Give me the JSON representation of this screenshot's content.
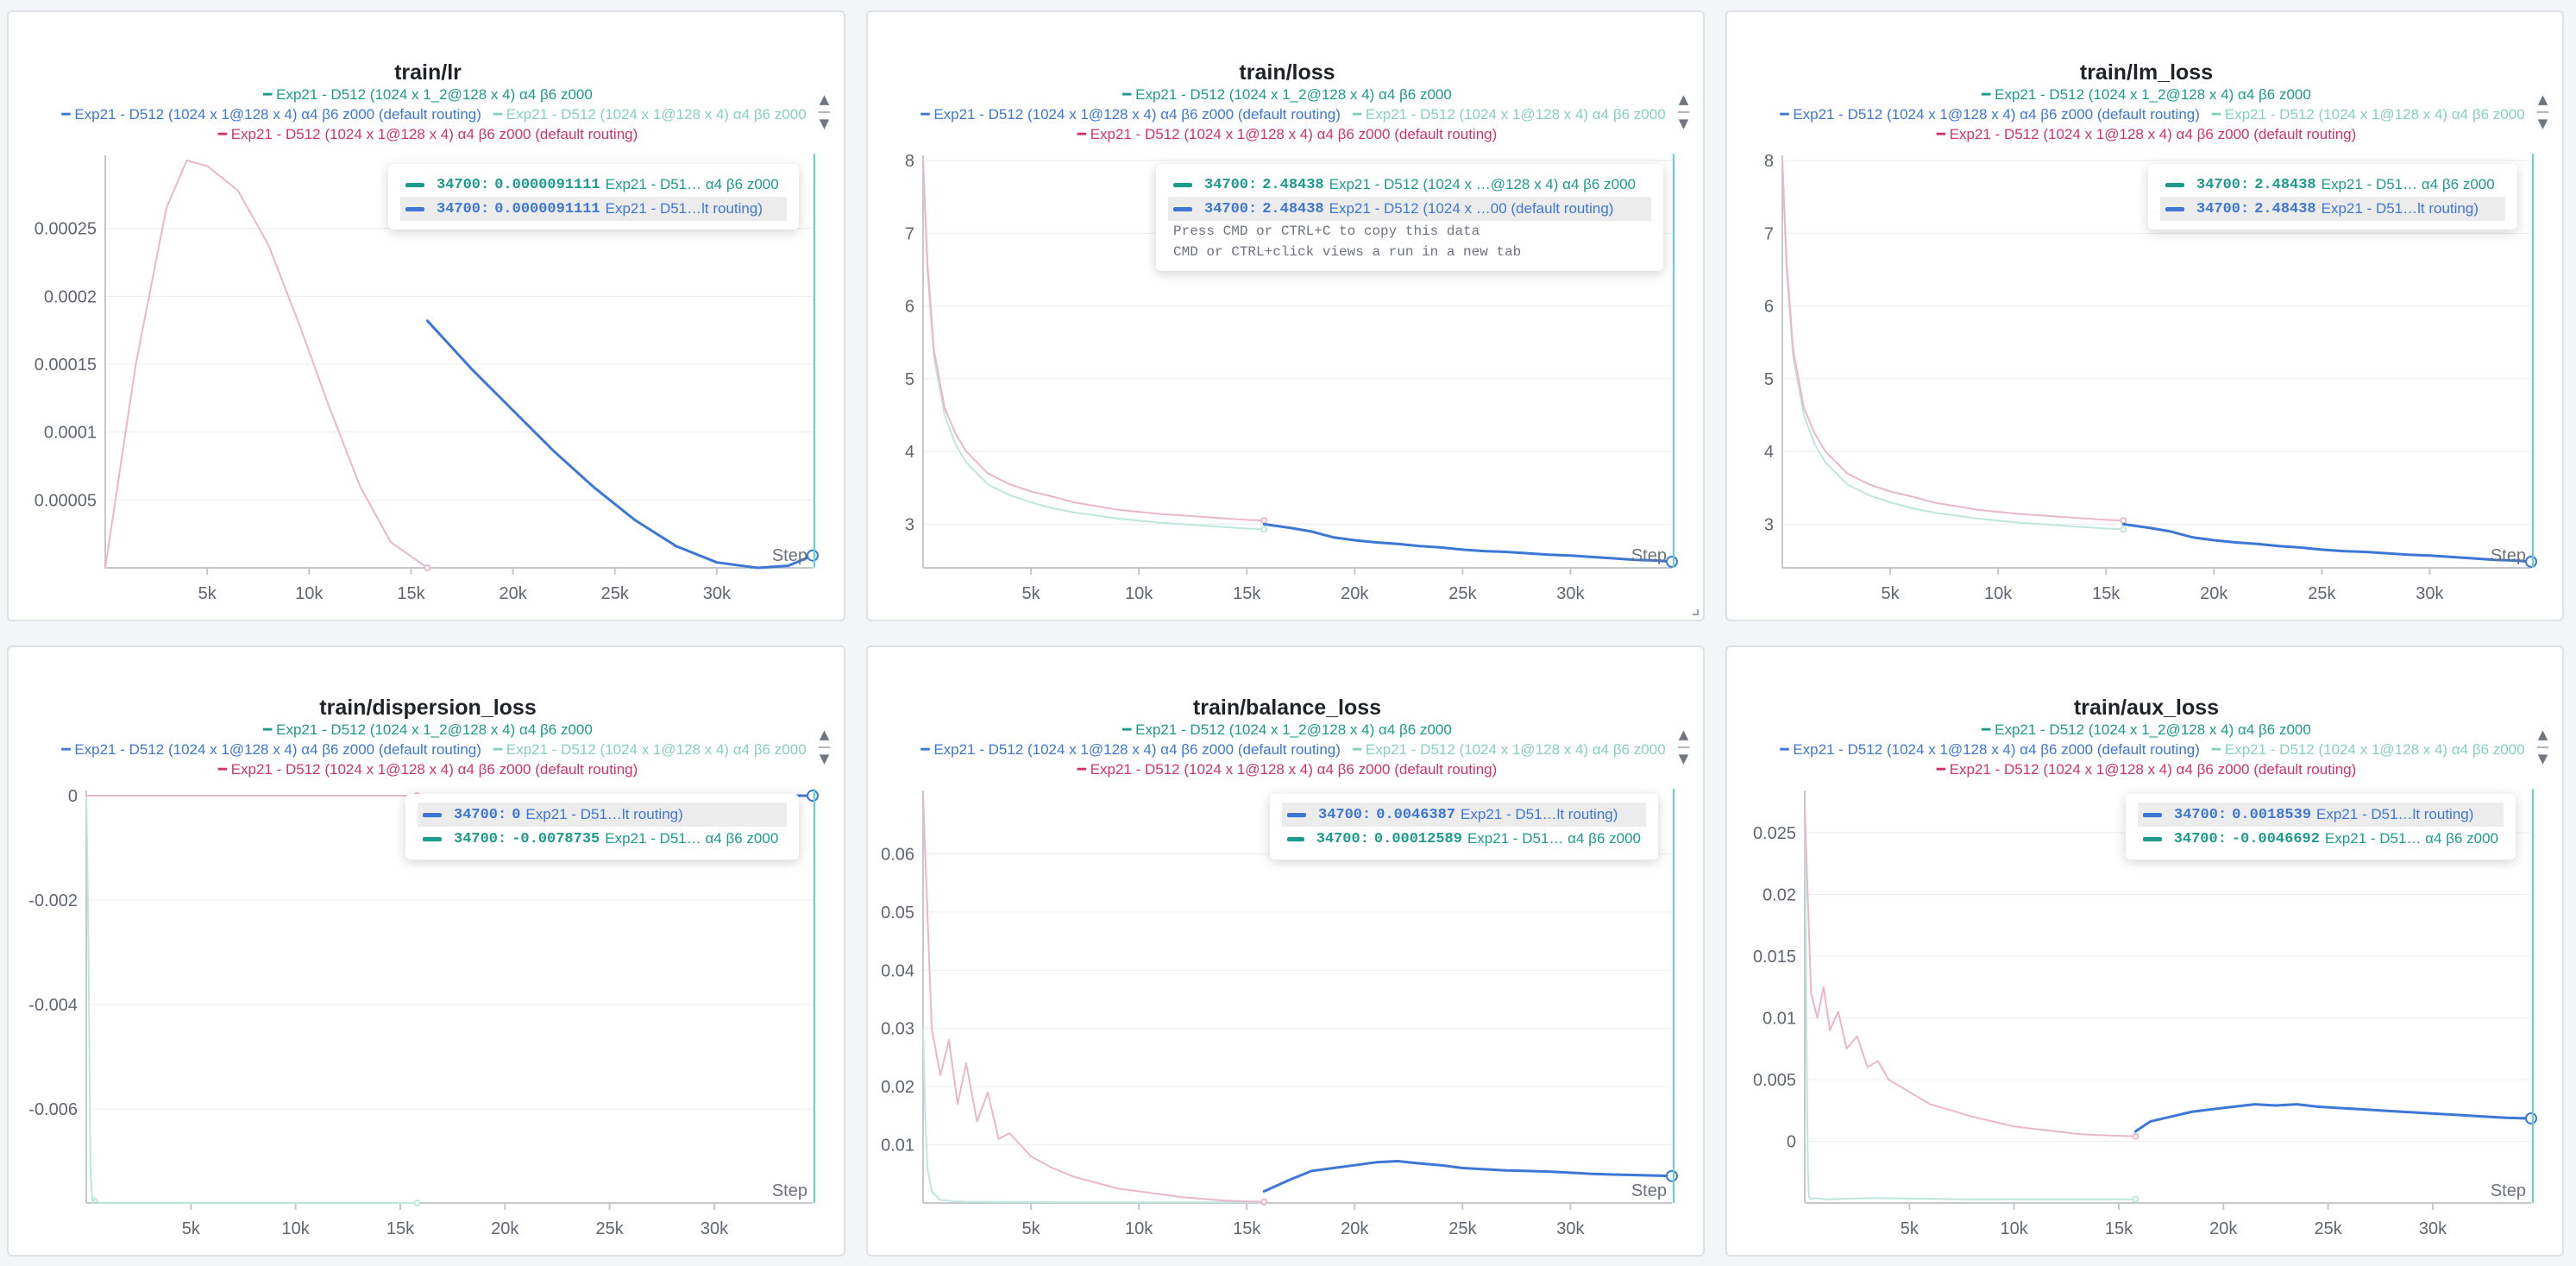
{
  "colors": {
    "teal": "#1c9a8c",
    "blue": "#3d77d6",
    "mint": "#86cfbf",
    "magenta": "#d0336b",
    "pink_line": "#eab6cb",
    "mint_line": "#bfe6dc",
    "cursor": "#5fd6cc"
  },
  "legend": [
    {
      "color": "teal",
      "text": "Exp21 - D512 (1024 x 1_2@128 x 4) α4 β6 z000"
    },
    {
      "color": "blue",
      "text": "Exp21 - D512 (1024 x 1@128 x 4) α4 β6 z000 (default routing)"
    },
    {
      "color": "mint",
      "text": "Exp21 - D512 (1024 x 1@128 x 4) α4 β6 z000"
    },
    {
      "color": "magenta",
      "text": "Exp21 - D512 (1024 x 1@128 x 4) α4 β6 z000 (default routing)"
    }
  ],
  "step_label": "Step",
  "icons": {
    "scroll_up": "caret-up-icon",
    "scroll_down": "caret-down-icon",
    "resize": "resize-corner-icon"
  },
  "chart_data": [
    {
      "title": "train/lr",
      "type": "line",
      "xlim": [
        0,
        34700
      ],
      "ylim": [
        0,
        0.0003
      ],
      "xticks": [
        5000,
        10000,
        15000,
        20000,
        25000,
        30000
      ],
      "xtick_labels": [
        "5k",
        "10k",
        "15k",
        "20k",
        "25k",
        "30k"
      ],
      "yticks": [
        5e-05,
        0.0001,
        0.00015,
        0.0002,
        0.00025
      ],
      "ytick_labels": [
        "0.00005",
        "0.0001",
        "0.00015",
        "0.0002",
        "0.00025"
      ],
      "series": [
        {
          "color": "pink_line",
          "width": 2,
          "x": [
            0,
            1500,
            3000,
            4000,
            5000,
            6500,
            8000,
            9500,
            11000,
            12500,
            14000,
            15800
          ],
          "y": [
            0,
            0.00015,
            0.000265,
            0.0003,
            0.000296,
            0.000278,
            0.000238,
            0.00018,
            0.000118,
            6e-05,
            1.9e-05,
            0
          ]
        },
        {
          "color": "blue",
          "width": 3,
          "x": [
            15800,
            18000,
            20000,
            22000,
            24000,
            26000,
            28000,
            30000,
            32000,
            33500,
            34700
          ],
          "y": [
            0.000182,
            0.000146,
            0.000116,
            8.6e-05,
            5.9e-05,
            3.5e-05,
            1.6e-05,
            4e-06,
            0,
            1.5e-06,
            9.1111e-06
          ]
        }
      ],
      "tooltip": {
        "rows": [
          {
            "color": "teal",
            "step": "34700:",
            "value": "0.0000091111",
            "name": "Exp21 - D51… α4 β6 z000",
            "highlight": false
          },
          {
            "color": "blue",
            "step": "34700:",
            "value": "0.0000091111",
            "name": "Exp21 - D51…lt routing)",
            "highlight": true
          }
        ],
        "hints": []
      }
    },
    {
      "title": "train/loss",
      "type": "line",
      "xlim": [
        0,
        34700
      ],
      "ylim": [
        2.4,
        8
      ],
      "xticks": [
        5000,
        10000,
        15000,
        20000,
        25000,
        30000
      ],
      "xtick_labels": [
        "5k",
        "10k",
        "15k",
        "20k",
        "25k",
        "30k"
      ],
      "yticks": [
        3,
        4,
        5,
        6,
        7,
        8
      ],
      "ytick_labels": [
        "3",
        "4",
        "5",
        "6",
        "7",
        "8"
      ],
      "series": [
        {
          "color": "mint_line",
          "width": 2,
          "x": [
            0,
            200,
            500,
            1000,
            1500,
            2000,
            3000,
            4000,
            5000,
            6000,
            7000,
            8000,
            9000,
            10000,
            11000,
            12000,
            13000,
            14000,
            15000,
            15800
          ],
          "y": [
            8,
            6.5,
            5.3,
            4.5,
            4.1,
            3.85,
            3.55,
            3.4,
            3.3,
            3.22,
            3.16,
            3.12,
            3.08,
            3.05,
            3.02,
            3.0,
            2.98,
            2.96,
            2.94,
            2.93
          ]
        },
        {
          "color": "pink_line",
          "width": 2,
          "x": [
            0,
            200,
            500,
            1000,
            1500,
            2000,
            3000,
            4000,
            5000,
            6000,
            7000,
            8000,
            9000,
            10000,
            11000,
            12000,
            13000,
            14000,
            15000,
            15800
          ],
          "y": [
            8,
            6.6,
            5.4,
            4.6,
            4.25,
            4.0,
            3.7,
            3.55,
            3.45,
            3.38,
            3.3,
            3.25,
            3.2,
            3.17,
            3.14,
            3.12,
            3.1,
            3.08,
            3.06,
            3.05
          ]
        },
        {
          "color": "blue",
          "width": 3,
          "x": [
            15800,
            17000,
            18000,
            19000,
            20000,
            21000,
            22000,
            23000,
            24000,
            25000,
            26000,
            27000,
            28000,
            29000,
            30000,
            31000,
            32000,
            33000,
            34000,
            34700
          ],
          "y": [
            3.0,
            2.95,
            2.9,
            2.82,
            2.78,
            2.75,
            2.73,
            2.7,
            2.68,
            2.65,
            2.63,
            2.62,
            2.6,
            2.58,
            2.57,
            2.55,
            2.53,
            2.51,
            2.5,
            2.48438
          ]
        }
      ],
      "tooltip": {
        "rows": [
          {
            "color": "teal",
            "step": "34700:",
            "value": "2.48438",
            "name": "Exp21 - D512 (1024 x …@128 x 4) α4 β6 z000",
            "highlight": false
          },
          {
            "color": "blue",
            "step": "34700:",
            "value": "2.48438",
            "name": "Exp21 - D512 (1024 x …00 (default routing)",
            "highlight": true
          }
        ],
        "hints": [
          "Press CMD or CTRL+C to copy this data",
          "CMD or CTRL+click views a run in a new tab"
        ]
      }
    },
    {
      "title": "train/lm_loss",
      "type": "line",
      "xlim": [
        0,
        34700
      ],
      "ylim": [
        2.4,
        8
      ],
      "xticks": [
        5000,
        10000,
        15000,
        20000,
        25000,
        30000
      ],
      "xtick_labels": [
        "5k",
        "10k",
        "15k",
        "20k",
        "25k",
        "30k"
      ],
      "yticks": [
        3,
        4,
        5,
        6,
        7,
        8
      ],
      "ytick_labels": [
        "3",
        "4",
        "5",
        "6",
        "7",
        "8"
      ],
      "series": [
        {
          "color": "mint_line",
          "width": 2,
          "x": [
            0,
            200,
            500,
            1000,
            1500,
            2000,
            3000,
            4000,
            5000,
            6000,
            7000,
            8000,
            9000,
            10000,
            11000,
            12000,
            13000,
            14000,
            15000,
            15800
          ],
          "y": [
            8,
            6.5,
            5.3,
            4.5,
            4.1,
            3.85,
            3.55,
            3.4,
            3.3,
            3.22,
            3.16,
            3.12,
            3.08,
            3.05,
            3.02,
            3.0,
            2.98,
            2.96,
            2.94,
            2.93
          ]
        },
        {
          "color": "pink_line",
          "width": 2,
          "x": [
            0,
            200,
            500,
            1000,
            1500,
            2000,
            3000,
            4000,
            5000,
            6000,
            7000,
            8000,
            9000,
            10000,
            11000,
            12000,
            13000,
            14000,
            15000,
            15800
          ],
          "y": [
            8,
            6.6,
            5.4,
            4.6,
            4.25,
            4.0,
            3.7,
            3.55,
            3.45,
            3.38,
            3.3,
            3.25,
            3.2,
            3.17,
            3.14,
            3.12,
            3.1,
            3.08,
            3.06,
            3.05
          ]
        },
        {
          "color": "blue",
          "width": 3,
          "x": [
            15800,
            17000,
            18000,
            19000,
            20000,
            21000,
            22000,
            23000,
            24000,
            25000,
            26000,
            27000,
            28000,
            29000,
            30000,
            31000,
            32000,
            33000,
            34000,
            34700
          ],
          "y": [
            3.0,
            2.95,
            2.9,
            2.82,
            2.78,
            2.75,
            2.73,
            2.7,
            2.68,
            2.65,
            2.63,
            2.62,
            2.6,
            2.58,
            2.57,
            2.55,
            2.53,
            2.51,
            2.5,
            2.48438
          ]
        }
      ],
      "tooltip": {
        "rows": [
          {
            "color": "teal",
            "step": "34700:",
            "value": "2.48438",
            "name": "Exp21 - D51… α4 β6 z000",
            "highlight": false
          },
          {
            "color": "blue",
            "step": "34700:",
            "value": "2.48438",
            "name": "Exp21 - D51…lt routing)",
            "highlight": true
          }
        ],
        "hints": []
      }
    },
    {
      "title": "train/dispersion_loss",
      "type": "line",
      "xlim": [
        0,
        34700
      ],
      "ylim": [
        -0.0078,
        0
      ],
      "xticks": [
        5000,
        10000,
        15000,
        20000,
        25000,
        30000
      ],
      "xtick_labels": [
        "5k",
        "10k",
        "15k",
        "20k",
        "25k",
        "30k"
      ],
      "yticks": [
        0,
        -0.002,
        -0.004,
        -0.006
      ],
      "ytick_labels": [
        "0",
        "-0.002",
        "-0.004",
        "-0.006"
      ],
      "series": [
        {
          "color": "mint_line",
          "width": 2,
          "x": [
            0,
            40,
            80,
            120,
            160,
            200,
            300,
            400,
            600,
            1000,
            2000,
            5000,
            10000,
            15800
          ],
          "y": [
            0,
            -0.0009,
            -0.002,
            -0.0035,
            -0.0055,
            -0.0072,
            -0.0078,
            -0.0077,
            -0.0078,
            -0.0078,
            -0.0078,
            -0.0078,
            -0.0078,
            -0.0078
          ]
        },
        {
          "color": "pink_line",
          "width": 2,
          "x": [
            0,
            15800
          ],
          "y": [
            0,
            0
          ]
        },
        {
          "color": "blue",
          "width": 3,
          "x": [
            15800,
            34700
          ],
          "y": [
            0,
            0
          ]
        }
      ],
      "tooltip": {
        "rows": [
          {
            "color": "blue",
            "step": "34700:",
            "value": "0",
            "name": "Exp21 - D51…lt routing)",
            "highlight": true
          },
          {
            "color": "teal",
            "step": "34700:",
            "value": "-0.0078735",
            "name": "Exp21 - D51… α4 β6 z000",
            "highlight": false
          }
        ],
        "hints": []
      }
    },
    {
      "title": "train/balance_loss",
      "type": "line",
      "xlim": [
        0,
        34700
      ],
      "ylim": [
        0,
        0.07
      ],
      "xticks": [
        5000,
        10000,
        15000,
        20000,
        25000,
        30000
      ],
      "xtick_labels": [
        "5k",
        "10k",
        "15k",
        "20k",
        "25k",
        "30k"
      ],
      "yticks": [
        0.01,
        0.02,
        0.03,
        0.04,
        0.05,
        0.06
      ],
      "ytick_labels": [
        "0.01",
        "0.02",
        "0.03",
        "0.04",
        "0.05",
        "0.06"
      ],
      "series": [
        {
          "color": "mint_line",
          "width": 2,
          "x": [
            0,
            100,
            200,
            400,
            800,
            2000,
            8000,
            15800
          ],
          "y": [
            0.03,
            0.015,
            0.006,
            0.002,
            0.0005,
            0.0002,
            0.0001,
            0.0001
          ]
        },
        {
          "color": "pink_line",
          "width": 2,
          "x": [
            0,
            400,
            800,
            1200,
            1600,
            2000,
            2500,
            3000,
            3500,
            4000,
            5000,
            6000,
            7000,
            8000,
            9000,
            10000,
            11000,
            12000,
            13000,
            14000,
            15800
          ],
          "y": [
            0.07,
            0.03,
            0.022,
            0.028,
            0.017,
            0.024,
            0.014,
            0.019,
            0.011,
            0.012,
            0.008,
            0.006,
            0.0045,
            0.0035,
            0.0025,
            0.002,
            0.0015,
            0.001,
            0.0007,
            0.0004,
            0.0002
          ]
        },
        {
          "color": "blue",
          "width": 3,
          "x": [
            15800,
            17000,
            18000,
            19000,
            20000,
            21000,
            22000,
            23000,
            24000,
            25000,
            26000,
            27000,
            28000,
            29000,
            30000,
            31000,
            32000,
            33000,
            34000,
            34700
          ],
          "y": [
            0.002,
            0.004,
            0.0055,
            0.006,
            0.0065,
            0.007,
            0.0072,
            0.0068,
            0.0065,
            0.006,
            0.0058,
            0.0056,
            0.0055,
            0.0054,
            0.0052,
            0.005,
            0.0049,
            0.0048,
            0.0047,
            0.0046387
          ]
        }
      ],
      "tooltip": {
        "rows": [
          {
            "color": "blue",
            "step": "34700:",
            "value": "0.0046387",
            "name": "Exp21 - D51…lt routing)",
            "highlight": true
          },
          {
            "color": "teal",
            "step": "34700:",
            "value": "0.00012589",
            "name": "Exp21 - D51… α4 β6 z000",
            "highlight": false
          }
        ],
        "hints": []
      }
    },
    {
      "title": "train/aux_loss",
      "type": "line",
      "xlim": [
        0,
        34700
      ],
      "ylim": [
        -0.005,
        0.028
      ],
      "xticks": [
        5000,
        10000,
        15000,
        20000,
        25000,
        30000
      ],
      "xtick_labels": [
        "5k",
        "10k",
        "15k",
        "20k",
        "25k",
        "30k"
      ],
      "yticks": [
        0,
        0.005,
        0.01,
        0.015,
        0.02,
        0.025
      ],
      "ytick_labels": [
        "0",
        "0.005",
        "0.01",
        "0.015",
        "0.02",
        "0.025"
      ],
      "series": [
        {
          "color": "mint_line",
          "width": 2,
          "x": [
            0,
            50,
            100,
            150,
            200,
            300,
            500,
            1000,
            3000,
            8000,
            15800
          ],
          "y": [
            0.027,
            0.018,
            0.006,
            -0.002,
            -0.0045,
            -0.0047,
            -0.0046,
            -0.0047,
            -0.0046,
            -0.0047,
            -0.0047
          ]
        },
        {
          "color": "pink_line",
          "width": 2,
          "x": [
            0,
            300,
            600,
            900,
            1200,
            1600,
            2000,
            2500,
            3000,
            3500,
            4000,
            5000,
            6000,
            7000,
            8000,
            9000,
            10000,
            11000,
            12000,
            13000,
            14000,
            15800
          ],
          "y": [
            0.027,
            0.012,
            0.01,
            0.0125,
            0.009,
            0.0105,
            0.0075,
            0.0085,
            0.006,
            0.0065,
            0.005,
            0.004,
            0.003,
            0.0025,
            0.002,
            0.0016,
            0.0012,
            0.001,
            0.0008,
            0.0006,
            0.0005,
            0.0004
          ]
        },
        {
          "color": "blue",
          "width": 3,
          "x": [
            15800,
            16500,
            17500,
            18500,
            19500,
            20500,
            21500,
            22500,
            23500,
            24500,
            25500,
            26500,
            27500,
            28500,
            29500,
            30500,
            31500,
            32500,
            33500,
            34700
          ],
          "y": [
            0.0008,
            0.0016,
            0.002,
            0.0024,
            0.0026,
            0.0028,
            0.003,
            0.0029,
            0.003,
            0.0028,
            0.0027,
            0.0026,
            0.0025,
            0.0024,
            0.0023,
            0.0022,
            0.0021,
            0.002,
            0.0019,
            0.0018539
          ]
        }
      ],
      "tooltip": {
        "rows": [
          {
            "color": "blue",
            "step": "34700:",
            "value": "0.0018539",
            "name": "Exp21 - D51…lt routing)",
            "highlight": true
          },
          {
            "color": "teal",
            "step": "34700:",
            "value": "-0.0046692",
            "name": "Exp21 - D51… α4 β6 z000",
            "highlight": false
          }
        ],
        "hints": []
      }
    }
  ]
}
